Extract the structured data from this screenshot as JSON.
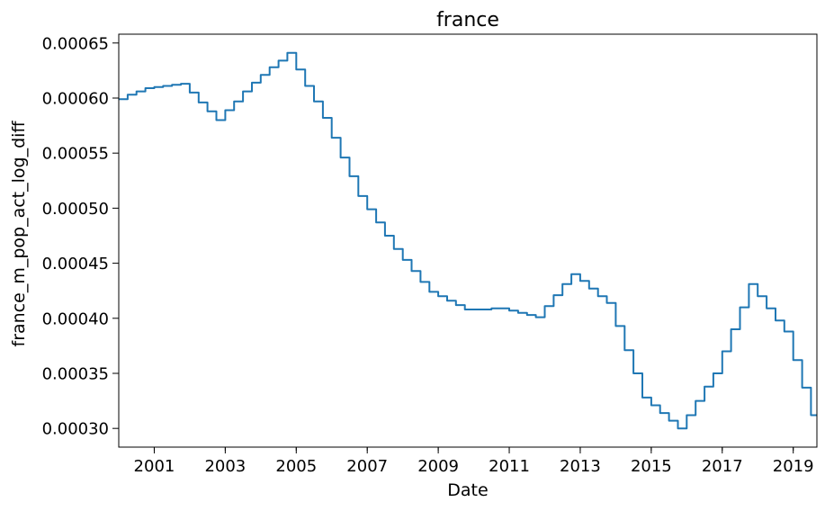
{
  "chart_data": {
    "type": "line",
    "title": "france",
    "xlabel": "Date",
    "ylabel": "france_m_pop_act_log_diff",
    "xlim": [
      "2000-01",
      "2019-09"
    ],
    "ylim": [
      0.000283,
      0.000658
    ],
    "x_ticks": [
      "2001",
      "2003",
      "2005",
      "2007",
      "2009",
      "2011",
      "2013",
      "2015",
      "2017",
      "2019"
    ],
    "y_ticks": [
      "0.00030",
      "0.00035",
      "0.00040",
      "0.00045",
      "0.00050",
      "0.00055",
      "0.00060",
      "0.00065"
    ],
    "grid": false,
    "legend": "none",
    "series": [
      {
        "color": "#1f77b4",
        "frequency": "quarterly-step",
        "x": [
          "2000Q1",
          "2000Q2",
          "2000Q3",
          "2000Q4",
          "2001Q1",
          "2001Q2",
          "2001Q3",
          "2001Q4",
          "2002Q1",
          "2002Q2",
          "2002Q3",
          "2002Q4",
          "2003Q1",
          "2003Q2",
          "2003Q3",
          "2003Q4",
          "2004Q1",
          "2004Q2",
          "2004Q3",
          "2004Q4",
          "2005Q1",
          "2005Q2",
          "2005Q3",
          "2005Q4",
          "2006Q1",
          "2006Q2",
          "2006Q3",
          "2006Q4",
          "2007Q1",
          "2007Q2",
          "2007Q3",
          "2007Q4",
          "2008Q1",
          "2008Q2",
          "2008Q3",
          "2008Q4",
          "2009Q1",
          "2009Q2",
          "2009Q3",
          "2009Q4",
          "2010Q1",
          "2010Q2",
          "2010Q3",
          "2010Q4",
          "2011Q1",
          "2011Q2",
          "2011Q3",
          "2011Q4",
          "2012Q1",
          "2012Q2",
          "2012Q3",
          "2012Q4",
          "2013Q1",
          "2013Q2",
          "2013Q3",
          "2013Q4",
          "2014Q1",
          "2014Q2",
          "2014Q3",
          "2014Q4",
          "2015Q1",
          "2015Q2",
          "2015Q3",
          "2015Q4",
          "2016Q1",
          "2016Q2",
          "2016Q3",
          "2016Q4",
          "2017Q1",
          "2017Q2",
          "2017Q3",
          "2017Q4",
          "2018Q1",
          "2018Q2",
          "2018Q3",
          "2018Q4",
          "2019Q1",
          "2019Q2",
          "2019Q3"
        ],
        "values": [
          0.000599,
          0.000603,
          0.000606,
          0.000609,
          0.00061,
          0.000611,
          0.000612,
          0.000613,
          0.000605,
          0.000596,
          0.000588,
          0.00058,
          0.000589,
          0.000597,
          0.000606,
          0.000614,
          0.000621,
          0.000628,
          0.000634,
          0.000641,
          0.000626,
          0.000611,
          0.000597,
          0.000582,
          0.000564,
          0.000546,
          0.000529,
          0.000511,
          0.000499,
          0.000487,
          0.000475,
          0.000463,
          0.000453,
          0.000443,
          0.000433,
          0.000424,
          0.00042,
          0.000416,
          0.000412,
          0.000408,
          0.000408,
          0.000408,
          0.000409,
          0.000409,
          0.000407,
          0.000405,
          0.000403,
          0.000401,
          0.000411,
          0.000421,
          0.000431,
          0.00044,
          0.000434,
          0.000427,
          0.00042,
          0.000414,
          0.000393,
          0.000371,
          0.00035,
          0.000328,
          0.000321,
          0.000314,
          0.000307,
          0.0003,
          0.000312,
          0.000325,
          0.000338,
          0.00035,
          0.00037,
          0.00039,
          0.00041,
          0.000431,
          0.00042,
          0.000409,
          0.000398,
          0.000388,
          0.000362,
          0.000337,
          0.000312
        ]
      }
    ]
  }
}
